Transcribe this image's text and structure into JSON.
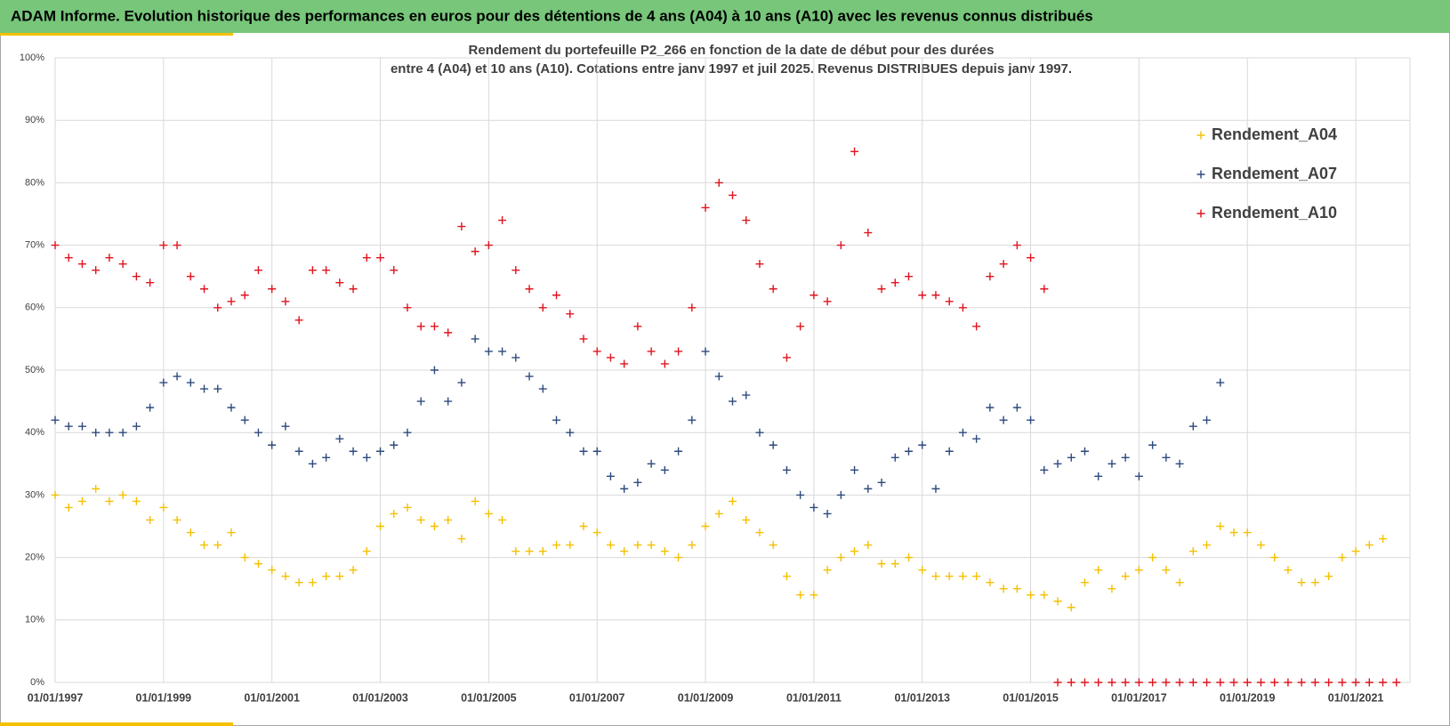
{
  "header": {
    "title": "ADAM Informe. Evolution historique des performances en euros pour des détentions de 4 ans (A04) à 10 ans (A10) avec les revenus connus distribués"
  },
  "chart_data": {
    "type": "scatter",
    "title": "Rendement du portefeuille P2_266 en fonction de la date de début pour des durées",
    "subtitle": "entre 4 (A04) et 10 ans (A10). Cotations entre janv 1997 et juil 2025. Revenus DISTRIBUES depuis janv 1997.",
    "x": [
      1997,
      1997.25,
      1997.5,
      1997.75,
      1998,
      1998.25,
      1998.5,
      1998.75,
      1999,
      1999.25,
      1999.5,
      1999.75,
      2000,
      2000.25,
      2000.5,
      2000.75,
      2001,
      2001.25,
      2001.5,
      2001.75,
      2002,
      2002.25,
      2002.5,
      2002.75,
      2003,
      2003.25,
      2003.5,
      2003.75,
      2004,
      2004.25,
      2004.5,
      2004.75,
      2005,
      2005.25,
      2005.5,
      2005.75,
      2006,
      2006.25,
      2006.5,
      2006.75,
      2007,
      2007.25,
      2007.5,
      2007.75,
      2008,
      2008.25,
      2008.5,
      2008.75,
      2009,
      2009.25,
      2009.5,
      2009.75,
      2010,
      2010.25,
      2010.5,
      2010.75,
      2011,
      2011.25,
      2011.5,
      2011.75,
      2012,
      2012.25,
      2012.5,
      2012.75,
      2013,
      2013.25,
      2013.5,
      2013.75,
      2014,
      2014.25,
      2014.5,
      2014.75,
      2015,
      2015.25,
      2015.5,
      2015.75,
      2016,
      2016.25,
      2016.5,
      2016.75,
      2017,
      2017.25,
      2017.5,
      2017.75,
      2018,
      2018.25,
      2018.5,
      2018.75,
      2019,
      2019.25,
      2019.5,
      2019.75,
      2020,
      2020.25,
      2020.5,
      2020.75,
      2021,
      2021.25,
      2021.5,
      2021.75
    ],
    "series": [
      {
        "name": "Rendement_A04",
        "color": "#f5c000",
        "values": [
          30,
          28,
          29,
          31,
          29,
          30,
          29,
          26,
          28,
          26,
          24,
          22,
          22,
          24,
          20,
          19,
          18,
          17,
          16,
          16,
          17,
          17,
          18,
          21,
          25,
          27,
          28,
          26,
          25,
          26,
          23,
          29,
          27,
          26,
          21,
          21,
          21,
          22,
          22,
          25,
          24,
          22,
          21,
          22,
          22,
          21,
          20,
          22,
          25,
          27,
          29,
          26,
          24,
          22,
          17,
          14,
          14,
          18,
          20,
          21,
          22,
          19,
          19,
          20,
          18,
          17,
          17,
          17,
          17,
          16,
          15,
          15,
          14,
          14,
          13,
          12,
          16,
          18,
          15,
          17,
          18,
          20,
          18,
          16,
          21,
          22,
          25,
          24,
          24,
          22,
          20,
          18,
          16,
          16,
          17,
          20,
          21,
          22,
          23,
          null
        ]
      },
      {
        "name": "Rendement_A07",
        "color": "#2e4a7d",
        "values": [
          42,
          41,
          41,
          40,
          40,
          40,
          41,
          44,
          48,
          49,
          48,
          47,
          47,
          44,
          42,
          40,
          38,
          41,
          37,
          35,
          36,
          39,
          37,
          36,
          37,
          38,
          40,
          45,
          50,
          45,
          48,
          55,
          53,
          53,
          52,
          49,
          47,
          42,
          40,
          37,
          37,
          33,
          31,
          32,
          35,
          34,
          37,
          42,
          53,
          49,
          45,
          46,
          40,
          38,
          34,
          30,
          28,
          27,
          30,
          34,
          31,
          32,
          36,
          37,
          38,
          31,
          37,
          40,
          39,
          44,
          42,
          44,
          42,
          34,
          35,
          36,
          37,
          33,
          35,
          36,
          33,
          38,
          36,
          35,
          41,
          42,
          48,
          null,
          null,
          null,
          null,
          null,
          null,
          null,
          null,
          null,
          null,
          null,
          null,
          null
        ]
      },
      {
        "name": "Rendement_A10",
        "color": "#e0141e",
        "values": [
          70,
          68,
          67,
          66,
          68,
          67,
          65,
          64,
          70,
          70,
          65,
          63,
          60,
          61,
          62,
          66,
          63,
          61,
          58,
          66,
          66,
          64,
          63,
          68,
          68,
          66,
          60,
          57,
          57,
          56,
          73,
          69,
          70,
          74,
          66,
          63,
          60,
          62,
          59,
          55,
          53,
          52,
          51,
          57,
          53,
          51,
          53,
          60,
          76,
          80,
          78,
          74,
          67,
          63,
          52,
          57,
          62,
          61,
          70,
          85,
          72,
          63,
          64,
          65,
          62,
          62,
          61,
          60,
          57,
          65,
          67,
          70,
          68,
          63,
          0,
          0,
          0,
          0,
          0,
          0,
          0,
          0,
          0,
          0,
          0,
          0,
          0,
          0,
          0,
          0,
          0,
          0,
          0,
          0,
          0,
          0,
          0,
          0,
          0,
          0
        ]
      }
    ],
    "xlim": [
      1997,
      2022
    ],
    "xticks": [
      {
        "value": 1997,
        "label": "01/01/1997"
      },
      {
        "value": 1999,
        "label": "01/01/1999"
      },
      {
        "value": 2001,
        "label": "01/01/2001"
      },
      {
        "value": 2003,
        "label": "01/01/2003"
      },
      {
        "value": 2005,
        "label": "01/01/2005"
      },
      {
        "value": 2007,
        "label": "01/01/2007"
      },
      {
        "value": 2009,
        "label": "01/01/2009"
      },
      {
        "value": 2011,
        "label": "01/01/2011"
      },
      {
        "value": 2013,
        "label": "01/01/2013"
      },
      {
        "value": 2015,
        "label": "01/01/2015"
      },
      {
        "value": 2017,
        "label": "01/01/2017"
      },
      {
        "value": 2019,
        "label": "01/01/2019"
      },
      {
        "value": 2021,
        "label": "01/01/2021"
      }
    ],
    "ylim": [
      0,
      100
    ],
    "yticks": [
      {
        "value": 0,
        "label": "0%"
      },
      {
        "value": 10,
        "label": "10%"
      },
      {
        "value": 20,
        "label": "20%"
      },
      {
        "value": 30,
        "label": "30%"
      },
      {
        "value": 40,
        "label": "40%"
      },
      {
        "value": 50,
        "label": "50%"
      },
      {
        "value": 60,
        "label": "60%"
      },
      {
        "value": 70,
        "label": "70%"
      },
      {
        "value": 80,
        "label": "80%"
      },
      {
        "value": 90,
        "label": "90%"
      },
      {
        "value": 100,
        "label": "100%"
      }
    ],
    "grid": true,
    "legend": "upper right"
  }
}
